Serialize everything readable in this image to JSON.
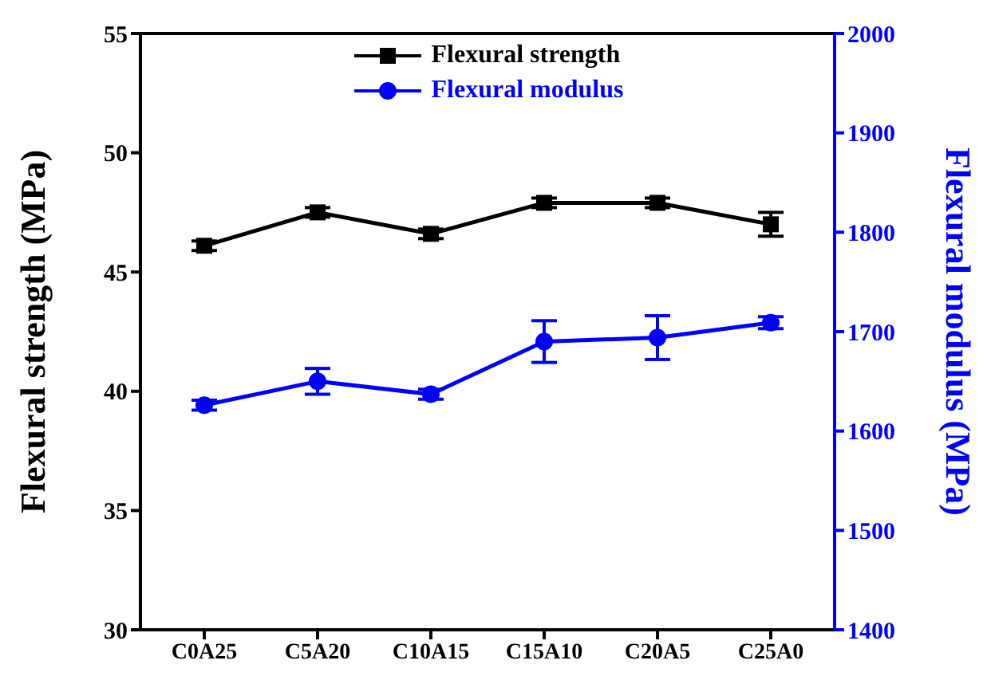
{
  "chart_data": {
    "type": "line",
    "categories": [
      "C0A25",
      "C5A20",
      "C10A15",
      "C15A10",
      "C20A5",
      "C25A0"
    ],
    "ylabel": "Flexural strength (MPa)",
    "y2label": "Flexural modulus (MPa)",
    "ylim": [
      30,
      55
    ],
    "yticks": [
      30,
      35,
      40,
      45,
      50,
      55
    ],
    "y2lim": [
      1400,
      2000
    ],
    "y2ticks": [
      1400,
      1500,
      1600,
      1700,
      1800,
      1900,
      2000
    ],
    "series": [
      {
        "name": "Flexural strength",
        "color": "#000000",
        "marker": "square",
        "values": [
          46.1,
          47.5,
          46.6,
          47.9,
          47.9,
          47.0
        ],
        "errors": [
          0.2,
          0.2,
          0.2,
          0.2,
          0.2,
          0.5
        ]
      },
      {
        "name": "Flexural modulus",
        "color": "#0000ff",
        "marker": "circle",
        "axis": "y2",
        "values": [
          1626,
          1650,
          1637,
          1690,
          1694,
          1709
        ],
        "errors": [
          5,
          13,
          5,
          21,
          22,
          6
        ]
      }
    ],
    "legend": "top"
  }
}
